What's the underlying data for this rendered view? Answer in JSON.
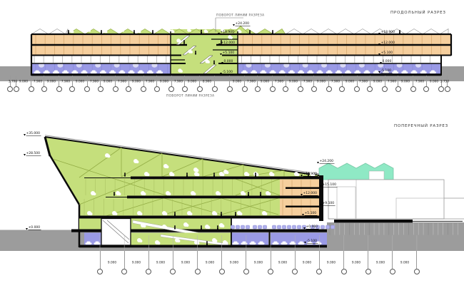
{
  "longitudinal": {
    "title": "ПРОДОЛЬНЫЙ РАЗРЕЗ",
    "turn_label_top": "ПОВОРОТ ЛИНИИ РАЗРЕЗА",
    "turn_label_bottom": "ПОВОРОТ ЛИНИИ РАЗРЕЗА",
    "elevations_mid": [
      "+24.200",
      "+18.900",
      "+12.000",
      "+5.100",
      "0.000",
      "-5.100"
    ],
    "elevations_right": [
      "+18.900",
      "+12.000",
      "+5.100",
      "0.000",
      "-5.100"
    ],
    "dims_left": [
      "3.700",
      "9.000",
      "7.900",
      "9.000",
      "7.900",
      "9.000",
      "7.900",
      "9.000",
      "7.900",
      "9.000",
      "7.900",
      "9.000",
      "7.900",
      "9.000",
      "8.900"
    ],
    "dims_right": [
      "9.000",
      "7.900",
      "9.000",
      "7.900",
      "9.000",
      "7.900",
      "9.000",
      "7.900",
      "9.000",
      "7.900",
      "9.000",
      "7.900",
      "9.000",
      "7.900",
      "9.000",
      "3.730"
    ]
  },
  "transverse": {
    "title": "ПОПЕРЕЧНЫЙ РАЗРЕЗ",
    "elevations_left": [
      "+35.000",
      "+28.500",
      "+0.000"
    ],
    "elevations_right": [
      "+24.200",
      "+18.900",
      "+15.100",
      "+12.000",
      "+9.100",
      "+5.100",
      "+0.000",
      "-5.100"
    ],
    "dims": [
      "9.000",
      "9.000",
      "9.000",
      "9.000",
      "9.000",
      "9.000",
      "9.000",
      "9.000",
      "9.000",
      "9.000",
      "9.000",
      "9.000",
      "9.000"
    ]
  },
  "colors": {
    "green": "#c5df7c",
    "green_stroke": "#93ad45",
    "orange": "#f6cf9d",
    "orange_line": "#d9ab72",
    "blue": "#9a9ae5",
    "teal": "#8fe9c5",
    "ground": "#9c9c9c",
    "seat": "#afafec",
    "ink": "#0a0a0a"
  }
}
